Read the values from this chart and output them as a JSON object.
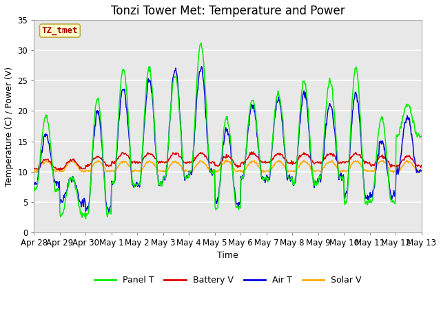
{
  "title": "Tonzi Tower Met: Temperature and Power",
  "xlabel": "Time",
  "ylabel": "Temperature (C) / Power (V)",
  "annotation": "TZ_tmet",
  "legend_labels": [
    "Panel T",
    "Battery V",
    "Air T",
    "Solar V"
  ],
  "legend_colors": [
    "#00ee00",
    "#dd0000",
    "#0000dd",
    "#ffaa00"
  ],
  "ylim": [
    0,
    35
  ],
  "bg_color": "#ffffff",
  "plot_bg_color": "#e8e8e8",
  "xtick_labels": [
    "Apr 28",
    "Apr 29",
    "Apr 30",
    "May 1",
    "May 2",
    "May 3",
    "May 4",
    "May 5",
    "May 6",
    "May 7",
    "May 8",
    "May 9",
    "May 10",
    "May 11",
    "May 12",
    "May 13"
  ],
  "grid_color": "#ffffff",
  "title_fontsize": 12,
  "axis_fontsize": 9,
  "tick_fontsize": 8.5
}
